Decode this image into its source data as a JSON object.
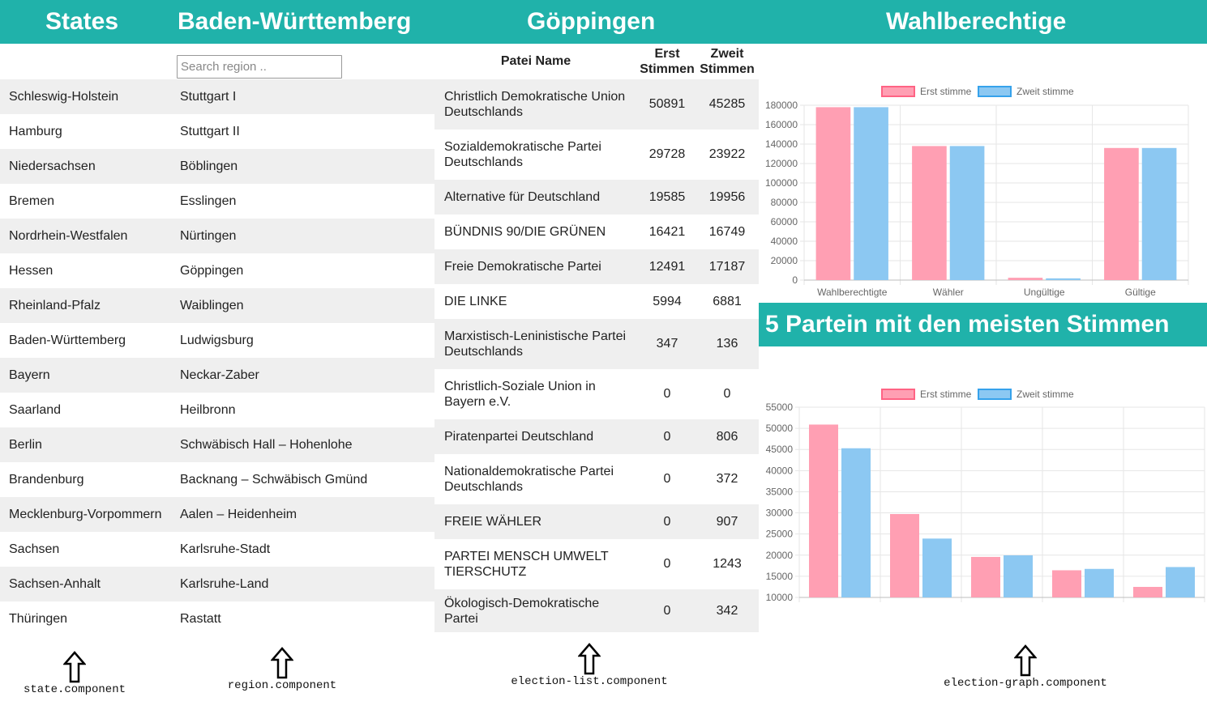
{
  "state": {
    "title": "States",
    "items": [
      "Schleswig-Holstein",
      "Hamburg",
      "Niedersachsen",
      "Bremen",
      "Nordrhein-Westfalen",
      "Hessen",
      "Rheinland-Pfalz",
      "Baden-Württemberg",
      "Bayern",
      "Saarland",
      "Berlin",
      "Brandenburg",
      "Mecklenburg-Vorpommern",
      "Sachsen",
      "Sachsen-Anhalt",
      "Thüringen"
    ],
    "component_label": "state.component"
  },
  "region": {
    "title": "Baden-Württemberg",
    "search_placeholder": "Search region ..",
    "items": [
      "Stuttgart I",
      "Stuttgart II",
      "Böblingen",
      "Esslingen",
      "Nürtingen",
      "Göppingen",
      "Waiblingen",
      "Ludwigsburg",
      "Neckar-Zaber",
      "Heilbronn",
      "Schwäbisch Hall – Hohenlohe",
      "Backnang – Schwäbisch Gmünd",
      "Aalen – Heidenheim",
      "Karlsruhe-Stadt",
      "Karlsruhe-Land",
      "Rastatt"
    ],
    "component_label": "region.component"
  },
  "election_list": {
    "title": "Göppingen",
    "col_name": "Patei Name",
    "col_erst": "Erst Stimmen",
    "col_zweit": "Zweit Stimmen",
    "rows": [
      {
        "name": "Christlich Demokratische Union Deutschlands",
        "erst": "50891",
        "zweit": "45285"
      },
      {
        "name": "Sozialdemokratische Partei Deutschlands",
        "erst": "29728",
        "zweit": "23922"
      },
      {
        "name": "Alternative für Deutschland",
        "erst": "19585",
        "zweit": "19956"
      },
      {
        "name": "BÜNDNIS 90/DIE GRÜNEN",
        "erst": "16421",
        "zweit": "16749"
      },
      {
        "name": "Freie Demokratische Partei",
        "erst": "12491",
        "zweit": "17187"
      },
      {
        "name": "DIE LINKE",
        "erst": "5994",
        "zweit": "6881"
      },
      {
        "name": "Marxistisch-Leninistische Partei Deutschlands",
        "erst": "347",
        "zweit": "136"
      },
      {
        "name": "Christlich-Soziale Union in Bayern e.V.",
        "erst": "0",
        "zweit": "0"
      },
      {
        "name": "Piratenpartei Deutschland",
        "erst": "0",
        "zweit": "806"
      },
      {
        "name": "Nationaldemokratische Partei Deutschlands",
        "erst": "0",
        "zweit": "372"
      },
      {
        "name": "FREIE WÄHLER",
        "erst": "0",
        "zweit": "907"
      },
      {
        "name": "PARTEI MENSCH UMWELT TIERSCHUTZ",
        "erst": "0",
        "zweit": "1243"
      },
      {
        "name": "Ökologisch-Demokratische Partei",
        "erst": "0",
        "zweit": "342"
      }
    ],
    "component_label": "election-list.component"
  },
  "election_graph": {
    "title": "Wahlberechtige",
    "subtitle": "5 Partein mit den meisten Stimmen",
    "component_label": "election-graph.component"
  },
  "colors": {
    "header_bg": "#20b2aa",
    "erst_fill": "#ff9fb3",
    "erst_border": "#ff6384",
    "zweit_fill": "#8cc8f2",
    "zweit_border": "#36a2eb"
  },
  "chart_data": [
    {
      "type": "bar",
      "categories": [
        "Wahlberechtigte",
        "Wähler",
        "Ungültige",
        "Gültige"
      ],
      "series": [
        {
          "name": "Erst stimme",
          "values": [
            178000,
            138000,
            2400,
            136000
          ]
        },
        {
          "name": "Zweit stimme",
          "values": [
            178000,
            138000,
            1800,
            136000
          ]
        }
      ],
      "ylim": [
        0,
        180000
      ],
      "yticks": [
        "0",
        "20000",
        "40000",
        "60000",
        "80000",
        "100000",
        "120000",
        "140000",
        "160000",
        "180000"
      ],
      "legend": "top"
    },
    {
      "type": "bar",
      "categories": [
        "",
        "",
        "",
        "",
        ""
      ],
      "series": [
        {
          "name": "Erst stimme",
          "values": [
            50891,
            29728,
            19585,
            16421,
            12491
          ]
        },
        {
          "name": "Zweit stimme",
          "values": [
            45285,
            23922,
            19956,
            16749,
            17187
          ]
        }
      ],
      "ylim": [
        10000,
        55000
      ],
      "yticks": [
        "10000",
        "15000",
        "20000",
        "25000",
        "30000",
        "35000",
        "40000",
        "45000",
        "50000",
        "55000"
      ],
      "legend": "top"
    }
  ]
}
